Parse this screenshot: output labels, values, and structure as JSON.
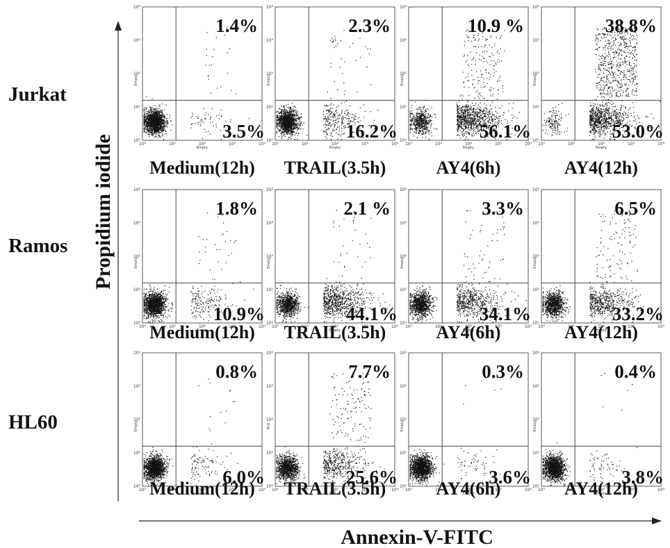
{
  "chart_data": {
    "type": "scatter",
    "title": "",
    "xlabel": "Annexin-V-FITC",
    "ylabel": "Propidium iodide",
    "scale": "log",
    "xlim": [
      1,
      10000
    ],
    "ylim": [
      1,
      10000
    ],
    "row_labels": [
      "Jurkat",
      "Ramos",
      "HL60"
    ],
    "conditions": [
      "Medium(12h)",
      "TRAIL(3.5h)",
      "AY4(6h)",
      "AY4(12h)"
    ],
    "decade_labels": [
      "10⁰",
      "10¹",
      "10²",
      "10³",
      "10⁴"
    ],
    "panels": [
      {
        "row": "Jurkat",
        "condition": "Medium(12h)",
        "upper_right": "1.4%",
        "lower_right": "3.5%",
        "axis_x": "Empty",
        "axis_y": "Empty"
      },
      {
        "row": "Jurkat",
        "condition": "TRAIL(3.5h)",
        "upper_right": "2.3%",
        "lower_right": "16.2%",
        "axis_x": "Empty",
        "axis_y": "Empty"
      },
      {
        "row": "Jurkat",
        "condition": "AY4(6h)",
        "upper_right": "10.9 %",
        "lower_right": "56.1%",
        "axis_x": "Empty",
        "axis_y": "Empty"
      },
      {
        "row": "Jurkat",
        "condition": "AY4(12h)",
        "upper_right": "38.8%",
        "lower_right": "53.0%",
        "axis_x": "Empty",
        "axis_y": "Empty"
      },
      {
        "row": "Ramos",
        "condition": "Medium(12h)",
        "upper_right": "1.8%",
        "lower_right": "10.9%",
        "axis_x": "Empty",
        "axis_y": "Empty"
      },
      {
        "row": "Ramos",
        "condition": "TRAIL(3.5h)",
        "upper_right": "2.1 %",
        "lower_right": "44.1%",
        "axis_x": "Empty",
        "axis_y": "Empty"
      },
      {
        "row": "Ramos",
        "condition": "AY4(6h)",
        "upper_right": "3.3%",
        "lower_right": "34.1%",
        "axis_x": "Empty",
        "axis_y": "Empty"
      },
      {
        "row": "Ramos",
        "condition": "AY4(12h)",
        "upper_right": "6.5%",
        "lower_right": "33.2%",
        "axis_x": "Empty",
        "axis_y": "Empty"
      },
      {
        "row": "HL60",
        "condition": "Medium(12h)",
        "upper_right": "0.8%",
        "lower_right": "6.0%",
        "axis_x": "Empty",
        "axis_y": "Empty"
      },
      {
        "row": "HL60",
        "condition": "TRAIL(3.5h)",
        "upper_right": "7.7%",
        "lower_right": "25.6%",
        "axis_x": "FITC-A",
        "axis_y": "PI-A"
      },
      {
        "row": "HL60",
        "condition": "AY4(6h)",
        "upper_right": "0.3%",
        "lower_right": "3.6%",
        "axis_x": "Empty",
        "axis_y": "Empty"
      },
      {
        "row": "HL60",
        "condition": "AY4(12h)",
        "upper_right": "0.4%",
        "lower_right": "3.8%",
        "axis_x": "Empty",
        "axis_y": "Empty"
      }
    ],
    "point_color": "#111111",
    "grid": false
  }
}
